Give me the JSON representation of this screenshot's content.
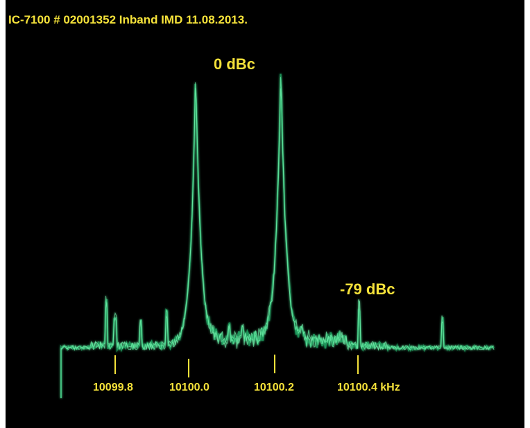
{
  "header": {
    "title": "IC-7100 # 02001352 Inband IMD 11.08.2013."
  },
  "annotations": {
    "carrier": "0 dBc",
    "imd": "-79 dBc"
  },
  "axis": {
    "labels": [
      "10099.8",
      "10100.0",
      "10100.2",
      "10100.4 kHz"
    ]
  }
}
